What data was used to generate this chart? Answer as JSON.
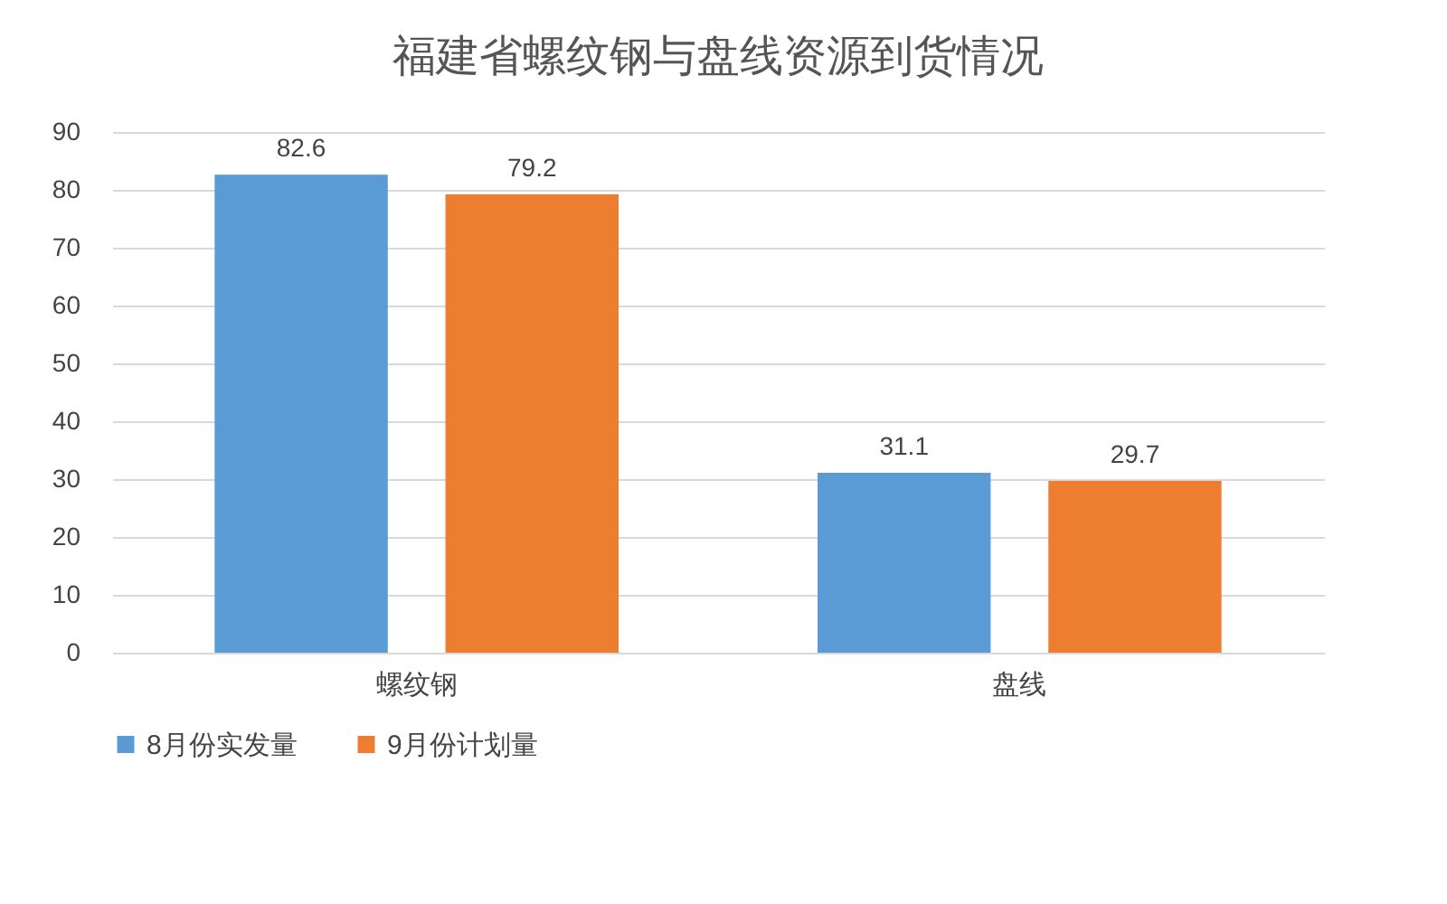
{
  "chart_data": {
    "type": "bar",
    "title": "福建省螺纹钢与盘线资源到货情况",
    "categories": [
      "螺纹钢",
      "盘线"
    ],
    "series": [
      {
        "name": "8月份实发量",
        "color": "#5b9bd5",
        "values": [
          82.6,
          31.1
        ]
      },
      {
        "name": "9月份计划量",
        "color": "#ed7d31",
        "values": [
          79.2,
          29.7
        ]
      }
    ],
    "ylim": [
      0,
      90
    ],
    "yticks": [
      0,
      10,
      20,
      30,
      40,
      50,
      60,
      70,
      80,
      90
    ],
    "grid": "y",
    "legend": "bottom",
    "data_labels": true
  }
}
